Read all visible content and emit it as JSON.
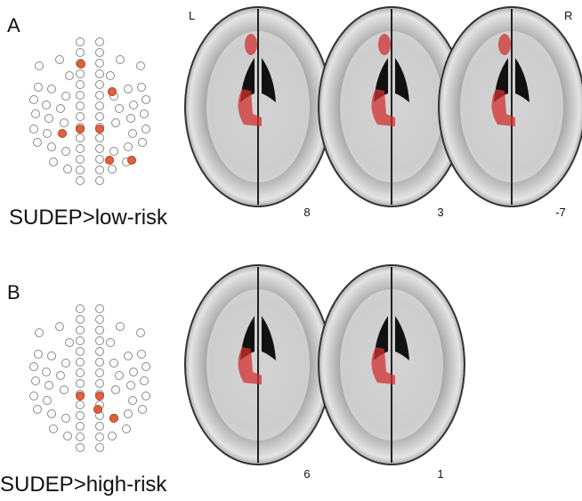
{
  "panels": [
    {
      "label": "A",
      "caption": "SUDEP>low-risk",
      "side_left": "L",
      "side_right": "R",
      "slices": [
        8,
        3,
        -7
      ]
    },
    {
      "label": "B",
      "caption": "SUDEP>high-risk",
      "slices": [
        6,
        1
      ]
    }
  ]
}
